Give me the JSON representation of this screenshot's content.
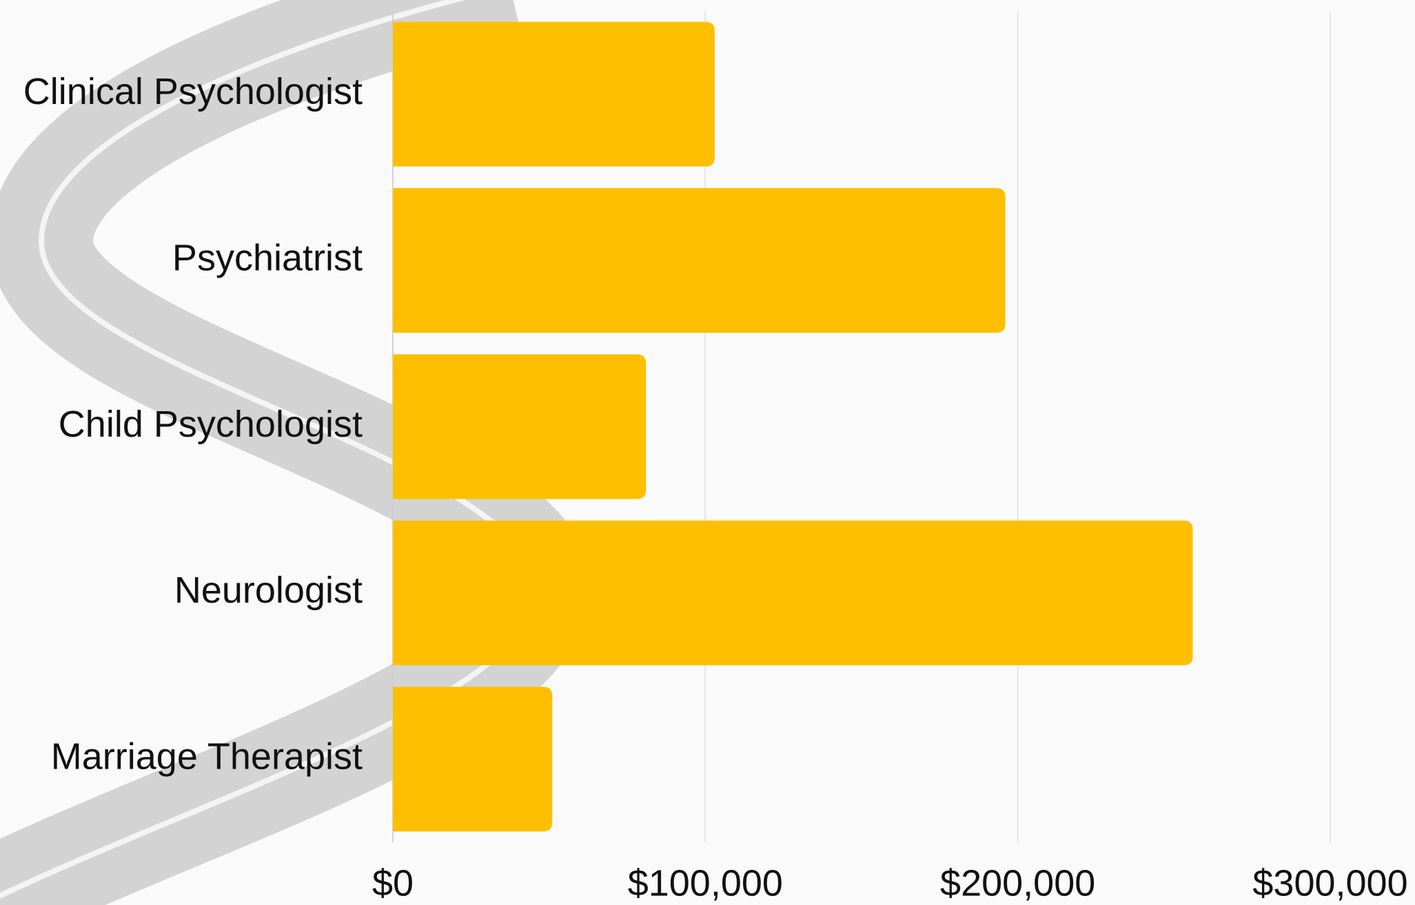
{
  "chart_data": {
    "type": "bar",
    "orientation": "horizontal",
    "categories": [
      "Clinical Psychologist",
      "Psychiatrist",
      "Child Psychologist",
      "Neurologist",
      "Marriage Therapist"
    ],
    "values": [
      103000,
      196000,
      81000,
      256000,
      51000
    ],
    "color": "#fdbf00",
    "xlim": [
      0,
      300000
    ],
    "xticks": [
      {
        "value": 0,
        "label": "$0"
      },
      {
        "value": 100000,
        "label": "$100,000"
      },
      {
        "value": 200000,
        "label": "$200,000"
      },
      {
        "value": 300000,
        "label": "$300,000"
      }
    ],
    "grid": true
  }
}
